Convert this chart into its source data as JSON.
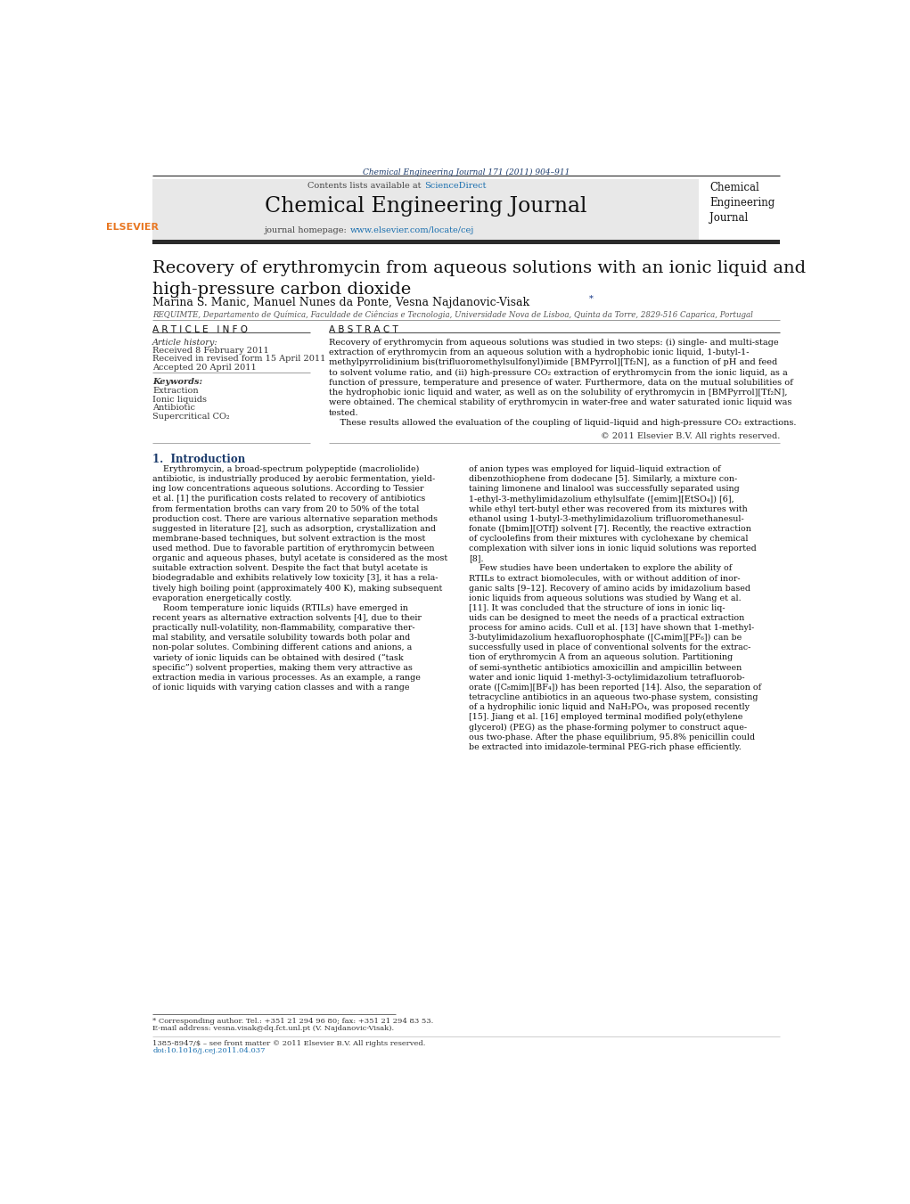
{
  "page_width": 10.21,
  "page_height": 13.51,
  "bg_color": "#ffffff",
  "top_journal_ref": "Chemical Engineering Journal 171 (2011) 904–911",
  "top_journal_ref_color": "#1a3a6b",
  "header_bg_color": "#e8e8e8",
  "dark_bar_color": "#2b2b2b",
  "elsevier_color": "#e87722",
  "sciencedirect_color": "#1a6faf",
  "header_url_color": "#1a6faf",
  "article_title": "Recovery of erythromycin from aqueous solutions with an ionic liquid and\nhigh-pressure carbon dioxide",
  "authors_base": "Marina S. Manic, Manuel Nunes da Ponte, Vesna Najdanovic-Visak",
  "authors_star": "*",
  "affiliation": "REQUIMTE, Departamento de Química, Faculdade de Ciências e Tecnologia, Universidade Nova de Lisboa, Quinta da Torre, 2829-516 Caparica, Portugal",
  "article_info_header": "A R T I C L E   I N F O",
  "abstract_header": "A B S T R A C T",
  "article_history_label": "Article history:",
  "received": "Received 8 February 2011",
  "revised": "Received in revised form 15 April 2011",
  "accepted": "Accepted 20 April 2011",
  "keywords_label": "Keywords:",
  "keywords": [
    "Extraction",
    "Ionic liquids",
    "Antibiotic",
    "Supercritical CO₂"
  ],
  "abstract_text": "Recovery of erythromycin from aqueous solutions was studied in two steps: (i) single- and multi-stage\nextraction of erythromycin from an aqueous solution with a hydrophobic ionic liquid, 1-butyl-1-\nmethylpyrrolidinium bis(trifluoromethylsulfonyl)imide [BMPyrrol][Tf₂N], as a function of pH and feed\nto solvent volume ratio, and (ii) high-pressure CO₂ extraction of erythromycin from the ionic liquid, as a\nfunction of pressure, temperature and presence of water. Furthermore, data on the mutual solubilities of\nthe hydrophobic ionic liquid and water, as well as on the solubility of erythromycin in [BMPyrrol][Tf₂N],\nwere obtained. The chemical stability of erythromycin in water-free and water saturated ionic liquid was\ntested.",
  "abstract_last_sentence": "    These results allowed the evaluation of the coupling of liquid–liquid and high-pressure CO₂ extractions.",
  "copyright": "© 2011 Elsevier B.V. All rights reserved.",
  "section1_title": "1.  Introduction",
  "intro_col1": "    Erythromycin, a broad-spectrum polypeptide (macroliolide)\nantibiotic, is industrially produced by aerobic fermentation, yield-\ning low concentrations aqueous solutions. According to Tessier\net al. [1] the purification costs related to recovery of antibiotics\nfrom fermentation broths can vary from 20 to 50% of the total\nproduction cost. There are various alternative separation methods\nsuggested in literature [2], such as adsorption, crystallization and\nmembrane-based techniques, but solvent extraction is the most\nused method. Due to favorable partition of erythromycin between\norganic and aqueous phases, butyl acetate is considered as the most\nsuitable extraction solvent. Despite the fact that butyl acetate is\nbiodegradable and exhibits relatively low toxicity [3], it has a rela-\ntively high boiling point (approximately 400 K), making subsequent\nevaporation energetically costly.\n    Room temperature ionic liquids (RTILs) have emerged in\nrecent years as alternative extraction solvents [4], due to their\npractically null-volatility, non-flammability, comparative ther-\nmal stability, and versatile solubility towards both polar and\nnon-polar solutes. Combining different cations and anions, a\nvariety of ionic liquids can be obtained with desired (“task\nspecific”) solvent properties, making them very attractive as\nextraction media in various processes. As an example, a range\nof ionic liquids with varying cation classes and with a range",
  "intro_col2": "of anion types was employed for liquid–liquid extraction of\ndibenzothiophene from dodecane [5]. Similarly, a mixture con-\ntaining limonene and linalool was successfully separated using\n1-ethyl-3-methylimidazolium ethylsulfate ([emim][EtSO₄]) [6],\nwhile ethyl tert-butyl ether was recovered from its mixtures with\nethanol using 1-butyl-3-methylimidazolium trifluoromethanesul-\nfonate ([bmim][OTf]) solvent [7]. Recently, the reactive extraction\nof cycloolefins from their mixtures with cyclohexane by chemical\ncomplexation with silver ions in ionic liquid solutions was reported\n[8].\n    Few studies have been undertaken to explore the ability of\nRTILs to extract biomolecules, with or without addition of inor-\nganic salts [9–12]. Recovery of amino acids by imidazolium based\nionic liquids from aqueous solutions was studied by Wang et al.\n[11]. It was concluded that the structure of ions in ionic liq-\nuids can be designed to meet the needs of a practical extraction\nprocess for amino acids. Cull et al. [13] have shown that 1-methyl-\n3-butylimidazolium hexafluorophosphate ([C₄mim][PF₆]) can be\nsuccessfully used in place of conventional solvents for the extrac-\ntion of erythromycin A from an aqueous solution. Partitioning\nof semi-synthetic antibiotics amoxicillin and ampicillin between\nwater and ionic liquid 1-methyl-3-octylimidazolium tetrafluorob-\norate ([C₈mim][BF₄]) has been reported [14]. Also, the separation of\ntetracycline antibiotics in an aqueous two-phase system, consisting\nof a hydrophilic ionic liquid and NaH₂PO₄, was proposed recently\n[15]. Jiang et al. [16] employed terminal modified poly(ethylene\nglycerol) (PEG) as the phase-forming polymer to construct aque-\nous two-phase. After the phase equilibrium, 95.8% penicillin could\nbe extracted into imidazole-terminal PEG-rich phase efficiently.",
  "footnote_star": "* Corresponding author. Tel.: +351 21 294 96 80; fax: +351 21 294 83 53.",
  "footnote_email": "E-mail address: vesna.visak@dq.fct.unl.pt (V. Najdanovic-Visak).",
  "footer_issn": "1385-8947/$ – see front matter © 2011 Elsevier B.V. All rights reserved.",
  "footer_doi": "doi:10.1016/j.cej.2011.04.037"
}
